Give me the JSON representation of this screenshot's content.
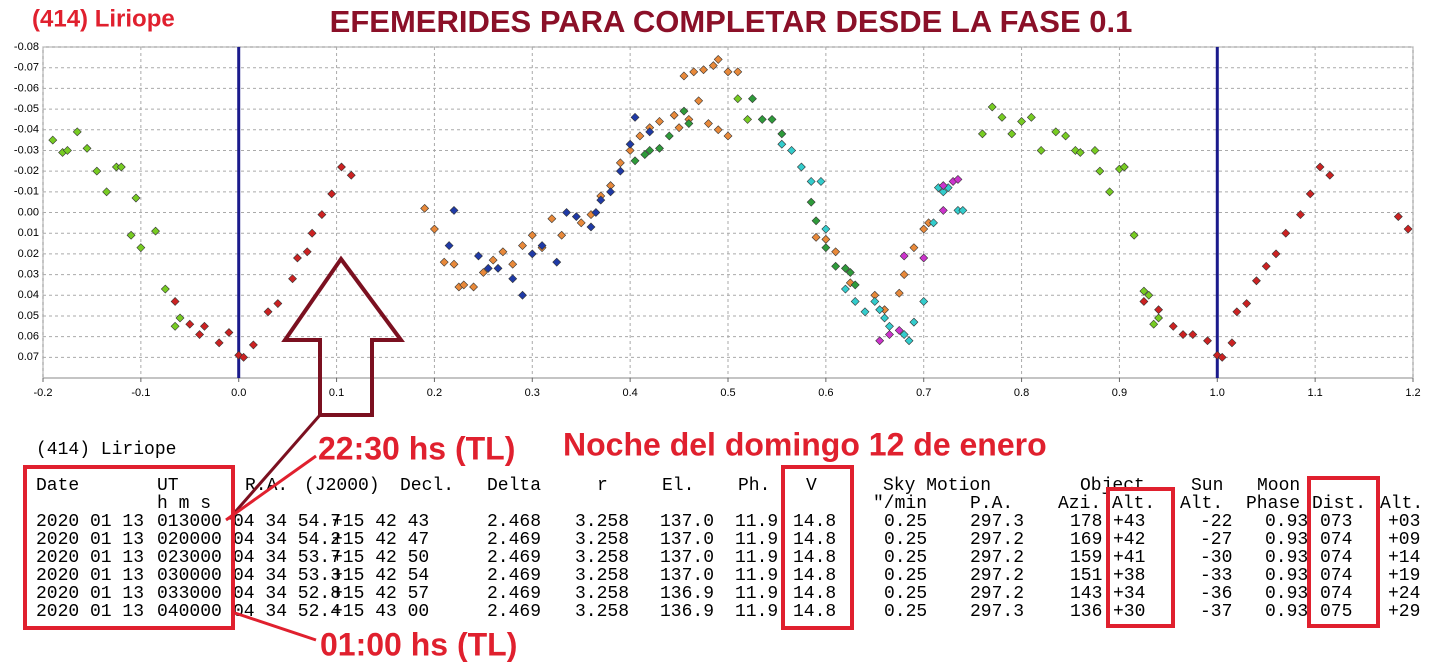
{
  "header": {
    "object": "(414) Liriope",
    "title": "EFEMERIDES PARA COMPLETAR DESDE LA FASE 0.1"
  },
  "chart_data": {
    "type": "scatter",
    "y_inverted": true,
    "grid": true,
    "marker": "diamond",
    "xlim": [
      -0.2,
      1.2
    ],
    "xticks": [
      -0.2,
      -0.1,
      {
        "value": 0,
        "label": "0.0"
      },
      0.1,
      0.2,
      0.3,
      0.4,
      0.5,
      0.6,
      0.7,
      0.8,
      0.9,
      {
        "value": 1,
        "label": "1.0"
      },
      1.1,
      1.2
    ],
    "ylim": [
      -0.08,
      0.08
    ],
    "yticks": [
      -0.08,
      -0.07,
      -0.06,
      -0.05,
      -0.04,
      -0.03,
      -0.02,
      -0.01,
      {
        "value": 0,
        "label": "0.00"
      },
      0.01,
      0.02,
      0.03,
      0.04,
      0.05,
      0.06,
      0.07
    ],
    "vlines": [
      0,
      1
    ],
    "vline_color": "#1a1a8c",
    "series": [
      {
        "color": "#77cc22",
        "x": [
          -0.19,
          -0.18,
          -0.175,
          -0.165,
          -0.155,
          -0.145,
          -0.135,
          -0.125,
          -0.12,
          -0.105,
          -0.11,
          -0.1,
          -0.085,
          -0.075,
          -0.06,
          -0.065,
          0.76,
          0.77,
          0.78,
          0.79,
          0.8,
          0.81,
          0.82,
          0.835,
          0.845,
          0.855,
          0.86,
          0.875,
          0.88,
          0.89,
          0.9,
          0.905,
          0.915,
          0.925,
          0.93,
          0.935,
          0.94,
          0.51,
          0.52
        ],
        "values": [
          -0.035,
          -0.029,
          -0.03,
          -0.039,
          -0.031,
          -0.02,
          -0.01,
          -0.022,
          -0.022,
          -0.007,
          0.011,
          0.017,
          0.009,
          0.037,
          0.051,
          0.055,
          -0.038,
          -0.051,
          -0.046,
          -0.038,
          -0.044,
          -0.046,
          -0.03,
          -0.039,
          -0.037,
          -0.03,
          -0.029,
          -0.03,
          -0.02,
          -0.01,
          -0.021,
          -0.022,
          0.011,
          0.038,
          0.04,
          0.054,
          0.051,
          -0.055,
          -0.045
        ]
      },
      {
        "color": "#cc2222",
        "x": [
          -0.065,
          -0.05,
          -0.04,
          -0.035,
          -0.02,
          -0.01,
          0,
          0.005,
          0.015,
          0.03,
          0.04,
          0.055,
          0.06,
          0.07,
          0.075,
          0.085,
          0.095,
          0.105,
          0.115,
          0.925,
          0.94,
          0.955,
          0.965,
          0.975,
          0.99,
          1,
          1.005,
          1.015,
          1.02,
          1.03,
          1.04,
          1.05,
          1.06,
          1.07,
          1.085,
          1.095,
          1.105,
          1.115,
          1.185,
          1.195
        ],
        "values": [
          0.043,
          0.054,
          0.059,
          0.055,
          0.063,
          0.058,
          0.069,
          0.07,
          0.064,
          0.048,
          0.044,
          0.032,
          0.022,
          0.019,
          0.01,
          0.001,
          -0.009,
          -0.022,
          -0.018,
          0.043,
          0.047,
          0.055,
          0.059,
          0.059,
          0.062,
          0.069,
          0.07,
          0.063,
          0.048,
          0.044,
          0.033,
          0.026,
          0.02,
          0.01,
          0.001,
          -0.009,
          -0.022,
          -0.018,
          0.002,
          0.008
        ]
      },
      {
        "color": "#e8893a",
        "x": [
          0.19,
          0.2,
          0.21,
          0.22,
          0.225,
          0.23,
          0.24,
          0.25,
          0.26,
          0.27,
          0.28,
          0.29,
          0.3,
          0.31,
          0.32,
          0.33,
          0.35,
          0.36,
          0.37,
          0.38,
          0.39,
          0.4,
          0.41,
          0.42,
          0.43,
          0.445,
          0.455,
          0.465,
          0.47,
          0.475,
          0.485,
          0.49,
          0.5,
          0.51,
          0.48,
          0.49,
          0.5,
          0.45,
          0.46,
          0.59,
          0.6,
          0.61,
          0.625,
          0.65,
          0.66,
          0.675,
          0.68,
          0.69,
          0.7,
          0.705
        ],
        "values": [
          -0.002,
          0.008,
          0.024,
          0.025,
          0.036,
          0.035,
          0.036,
          0.029,
          0.023,
          0.019,
          0.025,
          0.016,
          0.011,
          0.017,
          0.003,
          0.011,
          0.005,
          0.001,
          -0.008,
          -0.013,
          -0.024,
          -0.03,
          -0.037,
          -0.041,
          -0.044,
          -0.047,
          -0.066,
          -0.068,
          -0.054,
          -0.069,
          -0.071,
          -0.074,
          -0.068,
          -0.068,
          -0.043,
          -0.04,
          -0.037,
          -0.041,
          -0.045,
          0.012,
          0.013,
          0.019,
          0.034,
          0.04,
          0.047,
          0.039,
          0.03,
          0.017,
          0.008,
          0.005
        ]
      },
      {
        "color": "#1f3aa6",
        "x": [
          0.22,
          0.215,
          0.245,
          0.255,
          0.265,
          0.28,
          0.29,
          0.3,
          0.31,
          0.325,
          0.335,
          0.345,
          0.36,
          0.365,
          0.37,
          0.38,
          0.39,
          0.4,
          0.405,
          0.42
        ],
        "values": [
          -0.001,
          0.016,
          0.021,
          0.027,
          0.027,
          0.032,
          0.04,
          0.02,
          0.016,
          0.024,
          0,
          0.002,
          0.007,
          0,
          -0.006,
          -0.01,
          -0.02,
          -0.033,
          -0.046,
          -0.039
        ]
      },
      {
        "color": "#2e9b3a",
        "x": [
          0.405,
          0.415,
          0.42,
          0.43,
          0.44,
          0.455,
          0.46,
          0.525,
          0.535,
          0.545,
          0.555,
          0.585,
          0.59,
          0.6,
          0.61,
          0.62,
          0.625,
          0.63
        ],
        "values": [
          -0.025,
          -0.028,
          -0.03,
          -0.031,
          -0.037,
          -0.049,
          -0.043,
          -0.055,
          -0.045,
          -0.045,
          -0.038,
          -0.005,
          0.004,
          0.017,
          0.026,
          0.027,
          0.029,
          0.035
        ]
      },
      {
        "color": "#33cccc",
        "x": [
          0.555,
          0.565,
          0.575,
          0.585,
          0.595,
          0.6,
          0.62,
          0.63,
          0.64,
          0.65,
          0.655,
          0.66,
          0.665,
          0.68,
          0.685,
          0.69,
          0.7,
          0.71,
          0.72,
          0.715,
          0.735,
          0.74,
          0.725
        ],
        "values": [
          -0.033,
          -0.03,
          -0.022,
          -0.015,
          -0.015,
          0.008,
          0.037,
          0.043,
          0.048,
          0.043,
          0.047,
          0.051,
          0.055,
          0.059,
          0.062,
          0.053,
          0.043,
          0.005,
          -0.01,
          -0.012,
          -0.001,
          -0.001,
          -0.012
        ]
      },
      {
        "color": "#cc33cc",
        "x": [
          0.655,
          0.665,
          0.675,
          0.68,
          0.7,
          0.72,
          0.73,
          0.735,
          0.72
        ],
        "values": [
          0.062,
          0.059,
          0.057,
          0.021,
          0.022,
          -0.001,
          -0.015,
          -0.016,
          -0.013
        ]
      }
    ]
  },
  "table": {
    "caption": "(414) Liriope",
    "head": [
      [
        "Date",
        "UT",
        "R.A.",
        "(J2000)",
        "Decl.",
        "Delta",
        "r",
        "El.",
        "Ph.",
        "V",
        "Sky Motion",
        "Object",
        "Sun",
        "Moon"
      ],
      [
        "h m s",
        "\"/min",
        "P.A.",
        "Azi.",
        "Alt.",
        "Alt.",
        "Phase",
        "Dist.",
        "Alt."
      ]
    ],
    "rows": [
      [
        "2020 01 13",
        "013000",
        "04 34 54.7",
        "+15 42 43",
        "2.468",
        "3.258",
        "137.0",
        "11.9",
        "14.8",
        "0.25",
        "297.3",
        "178",
        "+43",
        "-22",
        "0.93",
        "073",
        "+03"
      ],
      [
        "2020 01 13",
        "020000",
        "04 34 54.2",
        "+15 42 47",
        "2.469",
        "3.258",
        "137.0",
        "11.9",
        "14.8",
        "0.25",
        "297.2",
        "169",
        "+42",
        "-27",
        "0.93",
        "074",
        "+09"
      ],
      [
        "2020 01 13",
        "023000",
        "04 34 53.7",
        "+15 42 50",
        "2.469",
        "3.258",
        "137.0",
        "11.9",
        "14.8",
        "0.25",
        "297.2",
        "159",
        "+41",
        "-30",
        "0.93",
        "074",
        "+14"
      ],
      [
        "2020 01 13",
        "030000",
        "04 34 53.3",
        "+15 42 54",
        "2.469",
        "3.258",
        "137.0",
        "11.9",
        "14.8",
        "0.25",
        "297.2",
        "151",
        "+38",
        "-33",
        "0.93",
        "074",
        "+19"
      ],
      [
        "2020 01 13",
        "033000",
        "04 34 52.8",
        "+15 42 57",
        "2.469",
        "3.258",
        "136.9",
        "11.9",
        "14.8",
        "0.25",
        "297.2",
        "143",
        "+34",
        "-36",
        "0.93",
        "074",
        "+24"
      ],
      [
        "2020 01 13",
        "040000",
        "04 34 52.4",
        "+15 43 00",
        "2.469",
        "3.258",
        "136.9",
        "11.9",
        "14.8",
        "0.25",
        "297.3",
        "136",
        "+30",
        "-37",
        "0.93",
        "075",
        "+29"
      ]
    ]
  },
  "annotations": {
    "start": "22:30 hs (TL)",
    "night": "Noche del domingo 12 de enero",
    "end": "01:00 hs (TL)"
  }
}
